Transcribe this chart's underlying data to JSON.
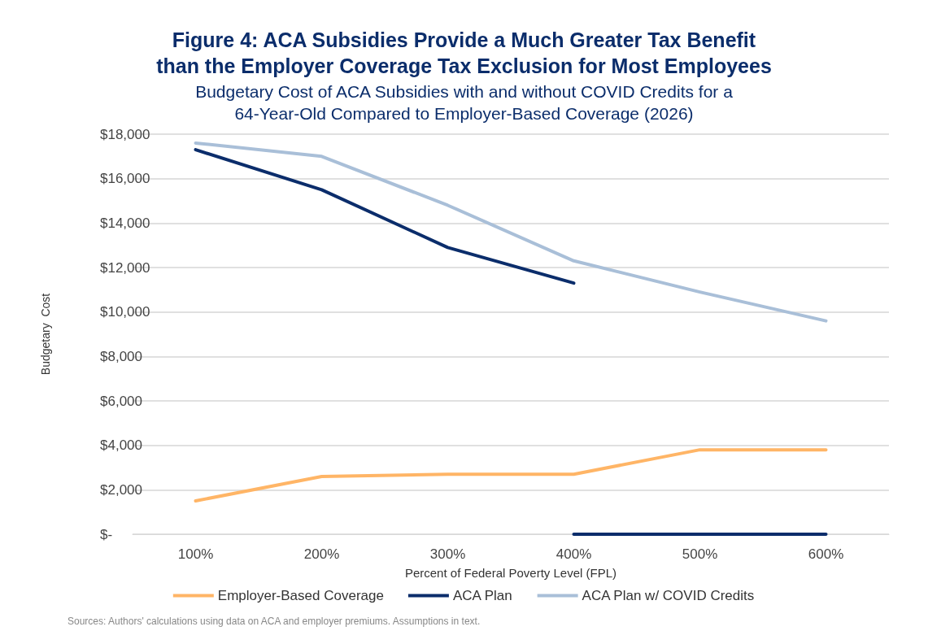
{
  "chart_data": {
    "type": "line",
    "title": "Figure 4: ACA Subsidies Provide a Much Greater Tax Benefit\nthan the Employer Coverage Tax Exclusion for Most Employees",
    "subtitle": "Budgetary Cost of ACA Subsidies with and without COVID Credits for a\n64-Year-Old Compared to Employer-Based Coverage (2026)",
    "xlabel": "Percent of Federal Poverty Level (FPL)",
    "ylabel": "Budgetary  Cost",
    "annotations": [
      "Sources: Authors' calculations using data on ACA and employer premiums. Assumptions in text."
    ],
    "x": [
      100,
      200,
      300,
      400,
      500,
      600
    ],
    "series": [
      {
        "name": "Employer-Based Coverage",
        "color": "#ffb566",
        "values": [
          1500,
          2600,
          2700,
          2700,
          3800,
          3800
        ]
      },
      {
        "name": "ACA Plan",
        "color": "#0b2d6b",
        "x": [
          100,
          200,
          300,
          400
        ],
        "values": [
          17300,
          15500,
          12900,
          11300
        ]
      },
      {
        "color": "#0b2d6b",
        "x": [
          400,
          500,
          600
        ],
        "values": [
          0,
          0,
          0
        ]
      },
      {
        "name": "ACA Plan w/ COVID Credits",
        "color": "#a9bfd8",
        "values": [
          17600,
          17000,
          14800,
          12300,
          10900,
          9600
        ]
      }
    ],
    "xlim": [
      50,
      650
    ],
    "xticks": [
      {
        "value": 100,
        "label": "100%"
      },
      {
        "value": 200,
        "label": "200%"
      },
      {
        "value": 300,
        "label": "300%"
      },
      {
        "value": 400,
        "label": "400%"
      },
      {
        "value": 500,
        "label": "500%"
      },
      {
        "value": 600,
        "label": "600%"
      }
    ],
    "ylim": [
      0,
      18000
    ],
    "yticks": [
      {
        "value": 0,
        "label": "$-"
      },
      {
        "value": 2000,
        "label": "$2,000"
      },
      {
        "value": 4000,
        "label": "$4,000"
      },
      {
        "value": 6000,
        "label": "$6,000"
      },
      {
        "value": 8000,
        "label": "$8,000"
      },
      {
        "value": 10000,
        "label": "$10,000"
      },
      {
        "value": 12000,
        "label": "$12,000"
      },
      {
        "value": 14000,
        "label": "$14,000"
      },
      {
        "value": 16000,
        "label": "$16,000"
      },
      {
        "value": 18000,
        "label": "$18,000"
      }
    ],
    "grid": "y",
    "legend": "bottom",
    "marker": "none",
    "line_style": "solid"
  }
}
